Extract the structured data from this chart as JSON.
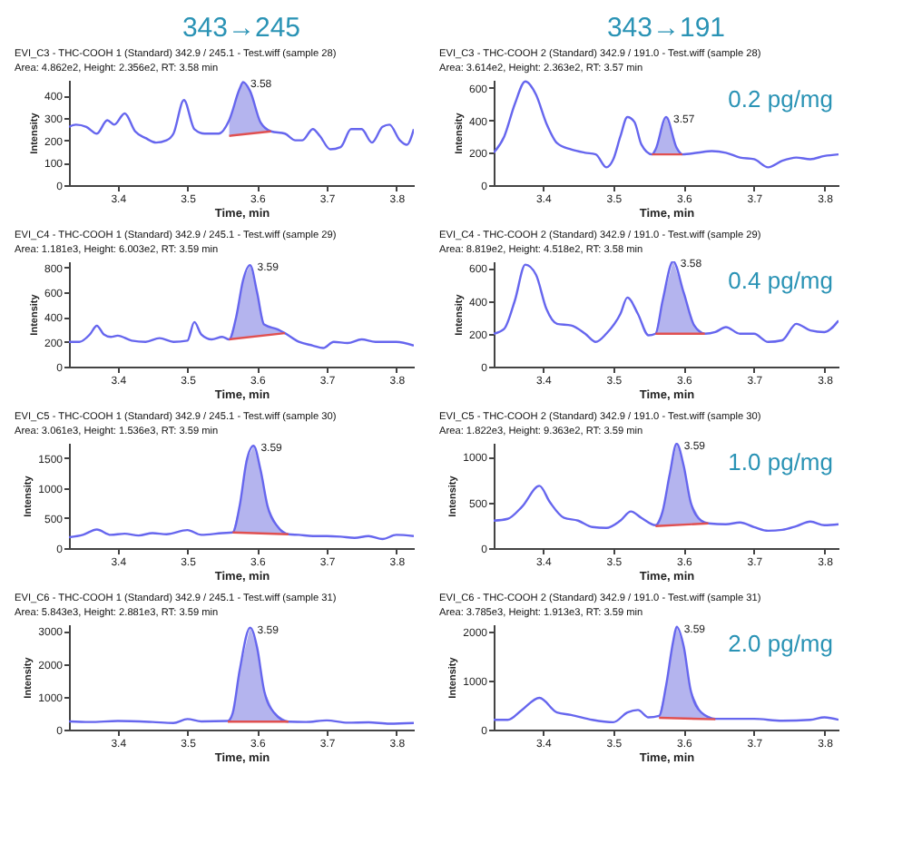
{
  "chart_data": [
    {
      "type": "line",
      "title": "EVI_C3 - THC-COOH 1 (Standard) 342.9 / 245.1 - Test.wiff (sample 28)",
      "subtitle": "Area: 4.862e2, Height: 2.356e2, RT: 3.58 min",
      "xlabel": "Time, min",
      "ylabel": "Intensity",
      "xlim": [
        3.33,
        3.825
      ],
      "xticks": [
        3.4,
        3.5,
        3.6,
        3.7,
        3.8
      ],
      "ylim": [
        0,
        470
      ],
      "yticks": [
        0,
        100,
        200,
        300,
        400
      ],
      "grid": false,
      "annotations": [
        "343→245",
        {
          "text": "3.58",
          "x": 3.58,
          "y": 460
        }
      ],
      "series": [
        {
          "type": "area",
          "color": "#b4b4ee",
          "x": [
            3.56,
            3.575,
            3.58,
            3.59,
            3.605,
            3.62
          ],
          "values": [
            290,
            430,
            460,
            420,
            280,
            240
          ]
        },
        {
          "type": "line",
          "color": "#6666ee",
          "x": [
            3.33,
            3.34,
            3.355,
            3.37,
            3.385,
            3.395,
            3.41,
            3.425,
            3.44,
            3.455,
            3.47,
            3.48,
            3.495,
            3.51,
            3.525,
            3.545,
            3.56,
            3.575,
            3.58,
            3.59,
            3.605,
            3.62,
            3.64,
            3.655,
            3.665,
            3.68,
            3.69,
            3.705,
            3.72,
            3.735,
            3.75,
            3.765,
            3.78,
            3.79,
            3.805,
            3.815,
            3.825
          ],
          "values": [
            260,
            270,
            260,
            230,
            290,
            270,
            320,
            240,
            210,
            190,
            200,
            230,
            380,
            250,
            230,
            230,
            290,
            430,
            460,
            420,
            280,
            240,
            230,
            200,
            200,
            250,
            220,
            160,
            170,
            250,
            250,
            190,
            260,
            270,
            200,
            180,
            250
          ]
        },
        {
          "type": "line",
          "color": "#e05050",
          "x": [
            3.56,
            3.62
          ],
          "values": [
            220,
            240
          ]
        }
      ]
    },
    {
      "type": "line",
      "title": "EVI_C3 - THC-COOH 2 (Standard) 342.9 / 191.0 - Test.wiff (sample 28)",
      "subtitle": "Area: 3.614e2, Height: 2.363e2, RT: 3.57 min",
      "xlabel": "Time, min",
      "ylabel": "Intensity",
      "xlim": [
        3.33,
        3.82
      ],
      "xticks": [
        3.4,
        3.5,
        3.6,
        3.7,
        3.8
      ],
      "ylim": [
        0,
        650
      ],
      "yticks": [
        0,
        200,
        400,
        600
      ],
      "grid": false,
      "annotations": [
        "343→191",
        "0.2 pg/mg",
        {
          "text": "3.57",
          "x": 3.575,
          "y": 420
        }
      ],
      "series": [
        {
          "type": "area",
          "color": "#b4b4ee",
          "x": [
            3.555,
            3.56,
            3.575,
            3.59,
            3.598
          ],
          "values": [
            190,
            220,
            420,
            230,
            190
          ]
        },
        {
          "type": "line",
          "color": "#6666ee",
          "x": [
            3.33,
            3.345,
            3.36,
            3.375,
            3.39,
            3.405,
            3.42,
            3.44,
            3.46,
            3.475,
            3.49,
            3.5,
            3.51,
            3.52,
            3.53,
            3.54,
            3.555,
            3.56,
            3.575,
            3.59,
            3.598,
            3.62,
            3.64,
            3.66,
            3.68,
            3.7,
            3.72,
            3.74,
            3.76,
            3.78,
            3.8,
            3.82
          ],
          "values": [
            200,
            300,
            500,
            640,
            560,
            380,
            260,
            220,
            200,
            190,
            110,
            160,
            300,
            420,
            390,
            250,
            190,
            220,
            420,
            230,
            190,
            200,
            210,
            200,
            170,
            160,
            110,
            150,
            170,
            160,
            180,
            190
          ]
        },
        {
          "type": "line",
          "color": "#e05050",
          "x": [
            3.555,
            3.598
          ],
          "values": [
            190,
            190
          ]
        }
      ]
    },
    {
      "type": "line",
      "title": "EVI_C4 - THC-COOH 1 (Standard) 342.9 / 245.1 - Test.wiff (sample 29)",
      "subtitle": "Area: 1.181e3, Height: 6.003e2, RT: 3.59 min",
      "xlabel": "Time, min",
      "ylabel": "Intensity",
      "xlim": [
        3.33,
        3.825
      ],
      "xticks": [
        3.4,
        3.5,
        3.6,
        3.7,
        3.8
      ],
      "ylim": [
        0,
        850
      ],
      "yticks": [
        0,
        200,
        400,
        600,
        800
      ],
      "grid": false,
      "annotations": [
        {
          "text": "3.59",
          "x": 3.59,
          "y": 820
        }
      ],
      "series": [
        {
          "type": "area",
          "color": "#b4b4ee",
          "x": [
            3.56,
            3.57,
            3.58,
            3.59,
            3.6,
            3.61,
            3.63,
            3.64
          ],
          "values": [
            220,
            400,
            700,
            820,
            600,
            340,
            300,
            270
          ]
        },
        {
          "type": "line",
          "color": "#6666ee",
          "x": [
            3.33,
            3.345,
            3.36,
            3.37,
            3.38,
            3.39,
            3.4,
            3.42,
            3.44,
            3.46,
            3.48,
            3.5,
            3.51,
            3.52,
            3.535,
            3.55,
            3.56,
            3.57,
            3.58,
            3.59,
            3.6,
            3.61,
            3.63,
            3.64,
            3.66,
            3.68,
            3.695,
            3.71,
            3.73,
            3.75,
            3.77,
            3.8,
            3.825
          ],
          "values": [
            200,
            200,
            260,
            330,
            260,
            240,
            250,
            210,
            200,
            230,
            200,
            210,
            360,
            260,
            220,
            240,
            220,
            400,
            700,
            820,
            600,
            340,
            300,
            270,
            200,
            170,
            150,
            200,
            190,
            220,
            200,
            200,
            170
          ]
        },
        {
          "type": "line",
          "color": "#e05050",
          "x": [
            3.56,
            3.64
          ],
          "values": [
            220,
            270
          ]
        }
      ]
    },
    {
      "type": "line",
      "title": "EVI_C4 - THC-COOH 2 (Standard) 342.9 / 191.0 - Test.wiff (sample 29)",
      "subtitle": "Area: 8.819e2, Height: 4.518e2, RT: 3.58 min",
      "xlabel": "Time, min",
      "ylabel": "Intensity",
      "xlim": [
        3.33,
        3.82
      ],
      "xticks": [
        3.4,
        3.5,
        3.6,
        3.7,
        3.8
      ],
      "ylim": [
        0,
        640
      ],
      "yticks": [
        0,
        200,
        400,
        600
      ],
      "grid": false,
      "annotations": [
        "0.4 pg/mg",
        {
          "text": "3.58",
          "x": 3.585,
          "y": 640
        }
      ],
      "series": [
        {
          "type": "area",
          "color": "#b4b4ee",
          "x": [
            3.56,
            3.57,
            3.585,
            3.6,
            3.615,
            3.63
          ],
          "values": [
            200,
            400,
            640,
            450,
            250,
            200
          ]
        },
        {
          "type": "line",
          "color": "#6666ee",
          "x": [
            3.33,
            3.345,
            3.36,
            3.375,
            3.39,
            3.405,
            3.42,
            3.44,
            3.46,
            3.475,
            3.49,
            3.51,
            3.52,
            3.535,
            3.55,
            3.56,
            3.57,
            3.585,
            3.6,
            3.615,
            3.63,
            3.645,
            3.66,
            3.68,
            3.7,
            3.72,
            3.74,
            3.76,
            3.78,
            3.8,
            3.82
          ],
          "values": [
            200,
            230,
            400,
            620,
            560,
            350,
            260,
            250,
            200,
            150,
            200,
            320,
            420,
            320,
            190,
            200,
            400,
            640,
            450,
            250,
            200,
            210,
            240,
            200,
            200,
            150,
            160,
            260,
            220,
            210,
            280
          ]
        },
        {
          "type": "line",
          "color": "#e05050",
          "x": [
            3.56,
            3.63
          ],
          "values": [
            200,
            200
          ]
        }
      ]
    },
    {
      "type": "line",
      "title": "EVI_C5 - THC-COOH 1 (Standard) 342.9 / 245.1 - Test.wiff (sample 30)",
      "subtitle": "Area: 3.061e3, Height: 1.536e3, RT: 3.59 min",
      "xlabel": "Time, min",
      "ylabel": "Intensity",
      "xlim": [
        3.33,
        3.825
      ],
      "xticks": [
        3.4,
        3.5,
        3.6,
        3.7,
        3.8
      ],
      "ylim": [
        0,
        1750
      ],
      "yticks": [
        0,
        500,
        1000,
        1500
      ],
      "grid": false,
      "annotations": [
        {
          "text": "3.59",
          "x": 3.595,
          "y": 1700
        }
      ],
      "series": [
        {
          "type": "area",
          "color": "#b4b4ee",
          "x": [
            3.565,
            3.575,
            3.585,
            3.595,
            3.605,
            3.615,
            3.63,
            3.645
          ],
          "values": [
            260,
            700,
            1450,
            1700,
            1300,
            700,
            350,
            230
          ]
        },
        {
          "type": "line",
          "color": "#6666ee",
          "x": [
            3.33,
            3.35,
            3.37,
            3.39,
            3.41,
            3.43,
            3.45,
            3.47,
            3.5,
            3.52,
            3.55,
            3.565,
            3.575,
            3.585,
            3.595,
            3.605,
            3.615,
            3.63,
            3.645,
            3.66,
            3.68,
            3.7,
            3.72,
            3.74,
            3.76,
            3.78,
            3.8,
            3.825
          ],
          "values": [
            180,
            220,
            310,
            220,
            240,
            210,
            250,
            230,
            300,
            220,
            250,
            260,
            700,
            1450,
            1700,
            1300,
            700,
            350,
            230,
            220,
            200,
            200,
            190,
            170,
            200,
            150,
            220,
            200
          ]
        },
        {
          "type": "line",
          "color": "#e05050",
          "x": [
            3.565,
            3.645
          ],
          "values": [
            260,
            230
          ]
        }
      ]
    },
    {
      "type": "line",
      "title": "EVI_C5 - THC-COOH 2 (Standard) 342.9 / 191.0 - Test.wiff (sample 30)",
      "subtitle": "Area: 1.822e3, Height: 9.363e2, RT: 3.59 min",
      "xlabel": "Time, min",
      "ylabel": "Intensity",
      "xlim": [
        3.33,
        3.82
      ],
      "xticks": [
        3.4,
        3.5,
        3.6,
        3.7,
        3.8
      ],
      "ylim": [
        0,
        1150
      ],
      "yticks": [
        0,
        500,
        1000
      ],
      "grid": false,
      "annotations": [
        "1.0 pg/mg",
        {
          "text": "3.59",
          "x": 3.59,
          "y": 1140
        }
      ],
      "series": [
        {
          "type": "area",
          "color": "#b4b4ee",
          "x": [
            3.56,
            3.57,
            3.58,
            3.59,
            3.6,
            3.61,
            3.625,
            3.635
          ],
          "values": [
            250,
            400,
            800,
            1140,
            900,
            500,
            300,
            270
          ]
        },
        {
          "type": "line",
          "color": "#6666ee",
          "x": [
            3.33,
            3.35,
            3.37,
            3.395,
            3.41,
            3.43,
            3.45,
            3.47,
            3.49,
            3.51,
            3.525,
            3.54,
            3.56,
            3.57,
            3.58,
            3.59,
            3.6,
            3.61,
            3.625,
            3.635,
            3.66,
            3.68,
            3.7,
            3.72,
            3.74,
            3.76,
            3.78,
            3.8,
            3.82
          ],
          "values": [
            300,
            320,
            450,
            680,
            500,
            330,
            300,
            230,
            220,
            300,
            400,
            330,
            250,
            400,
            800,
            1140,
            900,
            500,
            300,
            270,
            260,
            280,
            230,
            190,
            200,
            240,
            290,
            250,
            260
          ]
        },
        {
          "type": "line",
          "color": "#e05050",
          "x": [
            3.56,
            3.635
          ],
          "values": [
            240,
            270
          ]
        }
      ]
    },
    {
      "type": "line",
      "title": "EVI_C6 - THC-COOH 1 (Standard) 342.9 / 245.1 - Test.wiff (sample 31)",
      "subtitle": "Area: 5.843e3, Height: 2.881e3, RT: 3.59 min",
      "xlabel": "Time, min",
      "ylabel": "Intensity",
      "xlim": [
        3.33,
        3.825
      ],
      "xticks": [
        3.4,
        3.5,
        3.6,
        3.7,
        3.8
      ],
      "ylim": [
        0,
        3200
      ],
      "yticks": [
        0,
        1000,
        2000,
        3000
      ],
      "grid": false,
      "annotations": [
        {
          "text": "3.59",
          "x": 3.59,
          "y": 3100
        }
      ],
      "series": [
        {
          "type": "area",
          "color": "#b4b4ee",
          "x": [
            3.558,
            3.565,
            3.575,
            3.59,
            3.6,
            3.61,
            3.625,
            3.645
          ],
          "values": [
            260,
            500,
            1800,
            3100,
            2500,
            1200,
            500,
            240
          ]
        },
        {
          "type": "line",
          "color": "#6666ee",
          "x": [
            3.33,
            3.36,
            3.4,
            3.45,
            3.48,
            3.5,
            3.52,
            3.558,
            3.565,
            3.575,
            3.59,
            3.6,
            3.61,
            3.625,
            3.645,
            3.67,
            3.7,
            3.73,
            3.76,
            3.79,
            3.825
          ],
          "values": [
            250,
            230,
            260,
            230,
            200,
            320,
            250,
            260,
            500,
            1800,
            3100,
            2500,
            1200,
            500,
            240,
            230,
            280,
            210,
            220,
            180,
            200
          ]
        },
        {
          "type": "line",
          "color": "#e05050",
          "x": [
            3.558,
            3.645
          ],
          "values": [
            240,
            240
          ]
        }
      ]
    },
    {
      "type": "line",
      "title": "EVI_C6 - THC-COOH 2 (Standard) 342.9 / 191.0 - Test.wiff (sample 31)",
      "subtitle": "Area: 3.785e3, Height: 1.913e3, RT: 3.59 min",
      "xlabel": "Time, min",
      "ylabel": "Intensity",
      "xlim": [
        3.33,
        3.82
      ],
      "xticks": [
        3.4,
        3.5,
        3.6,
        3.7,
        3.8
      ],
      "ylim": [
        0,
        2150
      ],
      "yticks": [
        0,
        1000,
        2000
      ],
      "grid": false,
      "annotations": [
        "2.0 pg/mg",
        {
          "text": "3.59",
          "x": 3.59,
          "y": 2100
        }
      ],
      "series": [
        {
          "type": "area",
          "color": "#b4b4ee",
          "x": [
            3.565,
            3.575,
            3.585,
            3.59,
            3.6,
            3.61,
            3.625,
            3.645
          ],
          "values": [
            280,
            900,
            1800,
            2100,
            1700,
            800,
            350,
            220
          ]
        },
        {
          "type": "line",
          "color": "#6666ee",
          "x": [
            3.33,
            3.35,
            3.37,
            3.395,
            3.42,
            3.44,
            3.47,
            3.5,
            3.52,
            3.535,
            3.55,
            3.565,
            3.575,
            3.585,
            3.59,
            3.6,
            3.61,
            3.625,
            3.645,
            3.66,
            3.7,
            3.74,
            3.78,
            3.8,
            3.82
          ],
          "values": [
            200,
            200,
            400,
            650,
            350,
            300,
            200,
            150,
            350,
            400,
            250,
            280,
            900,
            1800,
            2100,
            1700,
            800,
            350,
            220,
            220,
            220,
            180,
            200,
            250,
            200
          ]
        },
        {
          "type": "line",
          "color": "#e05050",
          "x": [
            3.565,
            3.645
          ],
          "values": [
            240,
            210
          ]
        }
      ]
    }
  ]
}
